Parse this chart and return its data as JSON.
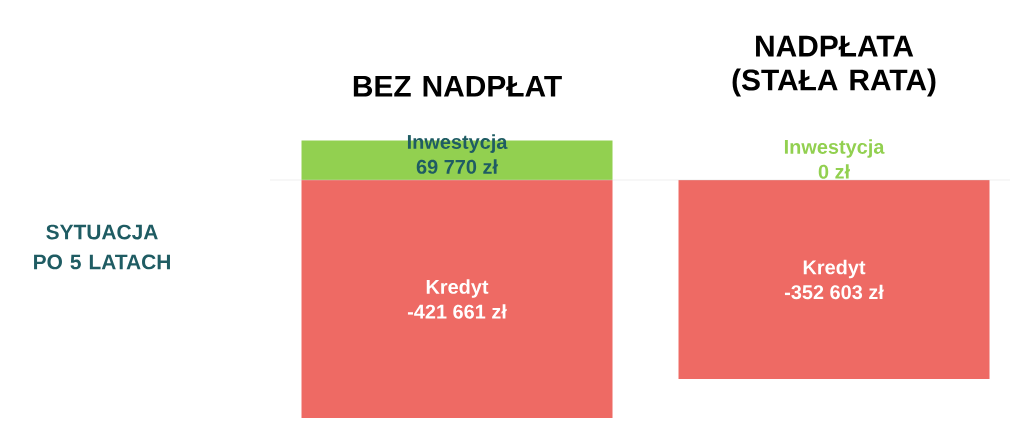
{
  "chart_data": {
    "type": "bar",
    "stacked": true,
    "ylabel": "SYTUACJA PO 5 LATACH",
    "categories": [
      "BEZ NADPŁAT",
      "NADPŁATA (STAŁA RATA)"
    ],
    "series": [
      {
        "name": "Inwestycja",
        "color": "#92d050",
        "values": [
          69770,
          0
        ],
        "value_labels": [
          "69 770 zł",
          "0 zł"
        ]
      },
      {
        "name": "Kredyt",
        "color": "#ee6a64",
        "values": [
          -421661,
          -352603
        ],
        "value_labels": [
          "-421 661 zł",
          "-352 603 zł"
        ]
      }
    ]
  }
}
